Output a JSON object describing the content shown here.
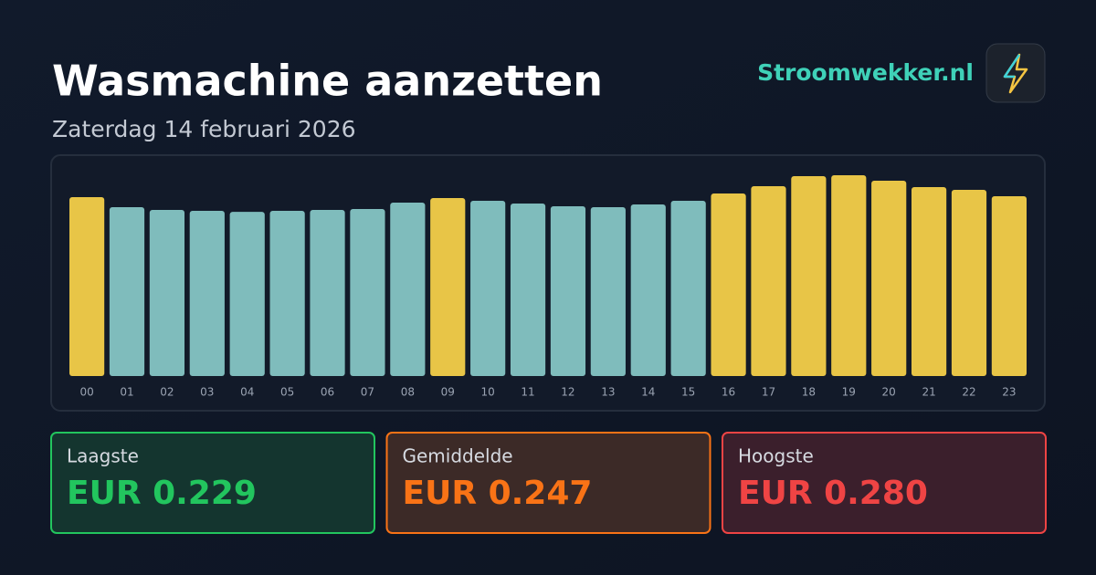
{
  "chart_data": {
    "type": "bar",
    "title": "Wasmachine aanzetten",
    "subtitle": "Zaterdag 14 februari 2026",
    "categories": [
      "00",
      "01",
      "02",
      "03",
      "04",
      "05",
      "06",
      "07",
      "08",
      "09",
      "10",
      "11",
      "12",
      "13",
      "14",
      "15",
      "16",
      "17",
      "18",
      "19",
      "20",
      "21",
      "22",
      "23"
    ],
    "values": [
      0.2495,
      0.2355,
      0.2316,
      0.2304,
      0.229,
      0.2304,
      0.2316,
      0.2329,
      0.2418,
      0.2482,
      0.2444,
      0.2405,
      0.2367,
      0.2355,
      0.2393,
      0.2444,
      0.2545,
      0.2647,
      0.2787,
      0.28,
      0.2724,
      0.2635,
      0.2596,
      0.2507
    ],
    "colors": [
      "#e8c547",
      "#7fbcbc",
      "#7fbcbc",
      "#7fbcbc",
      "#7fbcbc",
      "#7fbcbc",
      "#7fbcbc",
      "#7fbcbc",
      "#7fbcbc",
      "#e8c547",
      "#7fbcbc",
      "#7fbcbc",
      "#7fbcbc",
      "#7fbcbc",
      "#7fbcbc",
      "#7fbcbc",
      "#e8c547",
      "#e8c547",
      "#e8c547",
      "#e8c547",
      "#e8c547",
      "#e8c547",
      "#e8c547",
      "#e8c547"
    ]
  },
  "brand": "Stroomwekker.nl",
  "stats": [
    {
      "label": "Laagste",
      "value": "EUR 0.229",
      "color": "#22c55e",
      "background": "#14352f"
    },
    {
      "label": "Gemiddelde",
      "value": "EUR 0.247",
      "color": "#f97316",
      "background": "#3c2a27"
    },
    {
      "label": "Hoogste",
      "value": "EUR 0.280",
      "color": "#ef4444",
      "background": "#3b1f2c"
    }
  ]
}
